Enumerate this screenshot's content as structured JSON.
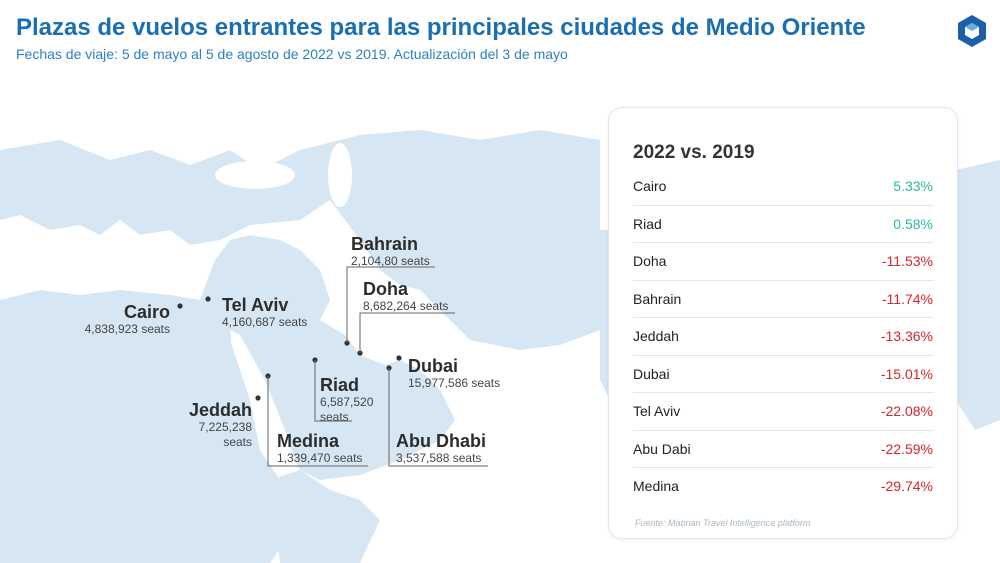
{
  "header": {
    "title": "Plazas de vuelos entrantes para las principales ciudades de Medio Oriente",
    "subtitle": "Fechas de viaje: 5 de mayo al 5 de agosto de 2022 vs 2019. Actualización del 3 de mayo"
  },
  "colors": {
    "title": "#1a6fb3",
    "subtitle": "#2a82c4",
    "land": "#d6e6f3",
    "positive": "#2cb8a0",
    "negative": "#d6262b",
    "logo": "#1b5fa8"
  },
  "logo": {
    "icon": "hexagon-logo-icon"
  },
  "map_labels": [
    {
      "name": "Bahrain",
      "seats": "2,104,80 seats"
    },
    {
      "name": "Doha",
      "seats": "8,682,264 seats"
    },
    {
      "name": "Cairo",
      "seats": "4,838,923 seats"
    },
    {
      "name": "Tel Aviv",
      "seats": "4,160,687 seats"
    },
    {
      "name": "Dubai",
      "seats": "15,977,586 seats"
    },
    {
      "name": "Riad",
      "seats_line1": "6,587,520",
      "seats_line2": "seats"
    },
    {
      "name": "Jeddah",
      "seats_line1": "7,225,238",
      "seats_line2": "seats"
    },
    {
      "name": "Medina",
      "seats": "1,339,470 seats"
    },
    {
      "name": "Abu Dhabi",
      "seats": "3,537,588 seats"
    }
  ],
  "panel": {
    "title": "2022 vs. 2019",
    "rows": [
      {
        "city": "Cairo",
        "value": "5.33%",
        "trend": "positive"
      },
      {
        "city": "Riad",
        "value": "0.58%",
        "trend": "positive"
      },
      {
        "city": "Doha",
        "value": "-11.53%",
        "trend": "negative"
      },
      {
        "city": "Bahrain",
        "value": "-11.74%",
        "trend": "negative"
      },
      {
        "city": "Jeddah",
        "value": "-13.36%",
        "trend": "negative"
      },
      {
        "city": "Dubai",
        "value": "-15.01%",
        "trend": "negative"
      },
      {
        "city": "Tel Aviv",
        "value": "-22.08%",
        "trend": "negative"
      },
      {
        "city": "Abu Dabi",
        "value": "-22.59%",
        "trend": "negative"
      },
      {
        "city": "Medina",
        "value": "-29.74%",
        "trend": "negative"
      }
    ],
    "source": "Fuente: Mabrian Travel Intelligence platform"
  }
}
